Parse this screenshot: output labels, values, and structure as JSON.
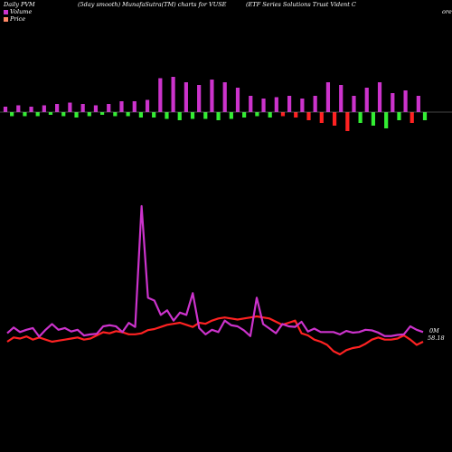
{
  "header": {
    "period": "Daily PVM",
    "smoothing": "(5day smooth) MunafaSutra(TM) charts for VUSE",
    "company": "(ETF Series Solutions Trust Vident C",
    "company_tail": "ore"
  },
  "legend": [
    {
      "label": "Volume",
      "color": "#cc33cc"
    },
    {
      "label": "Price",
      "color": "#ff8866"
    }
  ],
  "colors": {
    "background": "#000000",
    "volume_line": "#cc33cc",
    "price_line": "#ff2222",
    "bar_up": "#cc33cc",
    "bar_down": "#ff2222",
    "bar_neutral": "#33ee33",
    "baseline": "#888888",
    "text": "#ffffff"
  },
  "labels": {
    "volume_end": "0M",
    "price_end": "58.18"
  },
  "chart_data": {
    "type": "line",
    "x": [
      1,
      2,
      3,
      4,
      5,
      6,
      7,
      8,
      9,
      10,
      11,
      12,
      13,
      14,
      15,
      16,
      17,
      18,
      19,
      20,
      21,
      22,
      23,
      24,
      25,
      26,
      27,
      28,
      29,
      30,
      31,
      32,
      33,
      34,
      35,
      36,
      37,
      38,
      39,
      40,
      41,
      42,
      43,
      44,
      45,
      46,
      47,
      48,
      49,
      50,
      51,
      52,
      53,
      54,
      55,
      56,
      57,
      58,
      59,
      60,
      61,
      62,
      63,
      64,
      65,
      66
    ],
    "series": [
      {
        "name": "Volume",
        "values": [
          0.18,
          0.28,
          0.2,
          0.24,
          0.27,
          0.12,
          0.24,
          0.34,
          0.24,
          0.27,
          0.21,
          0.24,
          0.14,
          0.16,
          0.17,
          0.3,
          0.32,
          0.3,
          0.2,
          0.36,
          0.29,
          2.4,
          0.8,
          0.75,
          0.5,
          0.58,
          0.4,
          0.54,
          0.5,
          0.88,
          0.27,
          0.16,
          0.24,
          0.2,
          0.4,
          0.32,
          0.3,
          0.23,
          0.13,
          0.8,
          0.34,
          0.26,
          0.18,
          0.34,
          0.3,
          0.29,
          0.38,
          0.21,
          0.26,
          0.2,
          0.2,
          0.2,
          0.16,
          0.22,
          0.19,
          0.2,
          0.24,
          0.23,
          0.19,
          0.13,
          0.13,
          0.15,
          0.16,
          0.3,
          0.24,
          0.2
        ]
      },
      {
        "name": "Price",
        "values": [
          58.2,
          58.4,
          58.35,
          58.45,
          58.3,
          58.4,
          58.3,
          58.2,
          58.25,
          58.3,
          58.35,
          58.4,
          58.3,
          58.35,
          58.5,
          58.65,
          58.6,
          58.7,
          58.65,
          58.55,
          58.55,
          58.6,
          58.75,
          58.8,
          58.9,
          59.0,
          59.05,
          59.1,
          59.0,
          58.9,
          59.1,
          59.05,
          59.2,
          59.3,
          59.35,
          59.3,
          59.25,
          59.3,
          59.35,
          59.4,
          59.35,
          59.3,
          59.15,
          59.0,
          59.1,
          59.2,
          58.6,
          58.5,
          58.3,
          58.2,
          58.05,
          57.75,
          57.6,
          57.8,
          57.9,
          57.95,
          58.1,
          58.3,
          58.4,
          58.3,
          58.3,
          58.35,
          58.5,
          58.3,
          58.05,
          58.2
        ]
      }
    ],
    "bars": [
      4,
      -3,
      5,
      -3,
      4,
      -3,
      5,
      -2,
      6,
      -3,
      7,
      -4,
      6,
      -3,
      5,
      -2,
      6,
      -3,
      8,
      -3,
      8,
      -4,
      9,
      -4,
      25,
      -5,
      26,
      -6,
      22,
      -5,
      20,
      -5,
      24,
      -6,
      22,
      -5,
      18,
      -4,
      12,
      -3,
      10,
      -4,
      11,
      -3,
      12,
      -4,
      10,
      -6,
      12,
      -8,
      22,
      -10,
      20,
      -14,
      12,
      -8,
      18,
      -10,
      22,
      -12,
      14,
      -6,
      16,
      -8,
      12,
      -6
    ],
    "bar_colors": [
      "up",
      "neutral",
      "up",
      "neutral",
      "up",
      "neutral",
      "up",
      "neutral",
      "up",
      "neutral",
      "up",
      "neutral",
      "up",
      "neutral",
      "up",
      "neutral",
      "up",
      "neutral",
      "up",
      "neutral",
      "up",
      "neutral",
      "up",
      "neutral",
      "up",
      "neutral",
      "up",
      "neutral",
      "up",
      "neutral",
      "up",
      "neutral",
      "up",
      "neutral",
      "up",
      "neutral",
      "up",
      "neutral",
      "up",
      "neutral",
      "up",
      "neutral",
      "up",
      "down",
      "up",
      "down",
      "up",
      "down",
      "up",
      "down",
      "up",
      "down",
      "up",
      "down",
      "up",
      "neutral",
      "up",
      "neutral",
      "up",
      "neutral",
      "up",
      "neutral",
      "up",
      "down",
      "up",
      "neutral"
    ],
    "grid": false
  }
}
